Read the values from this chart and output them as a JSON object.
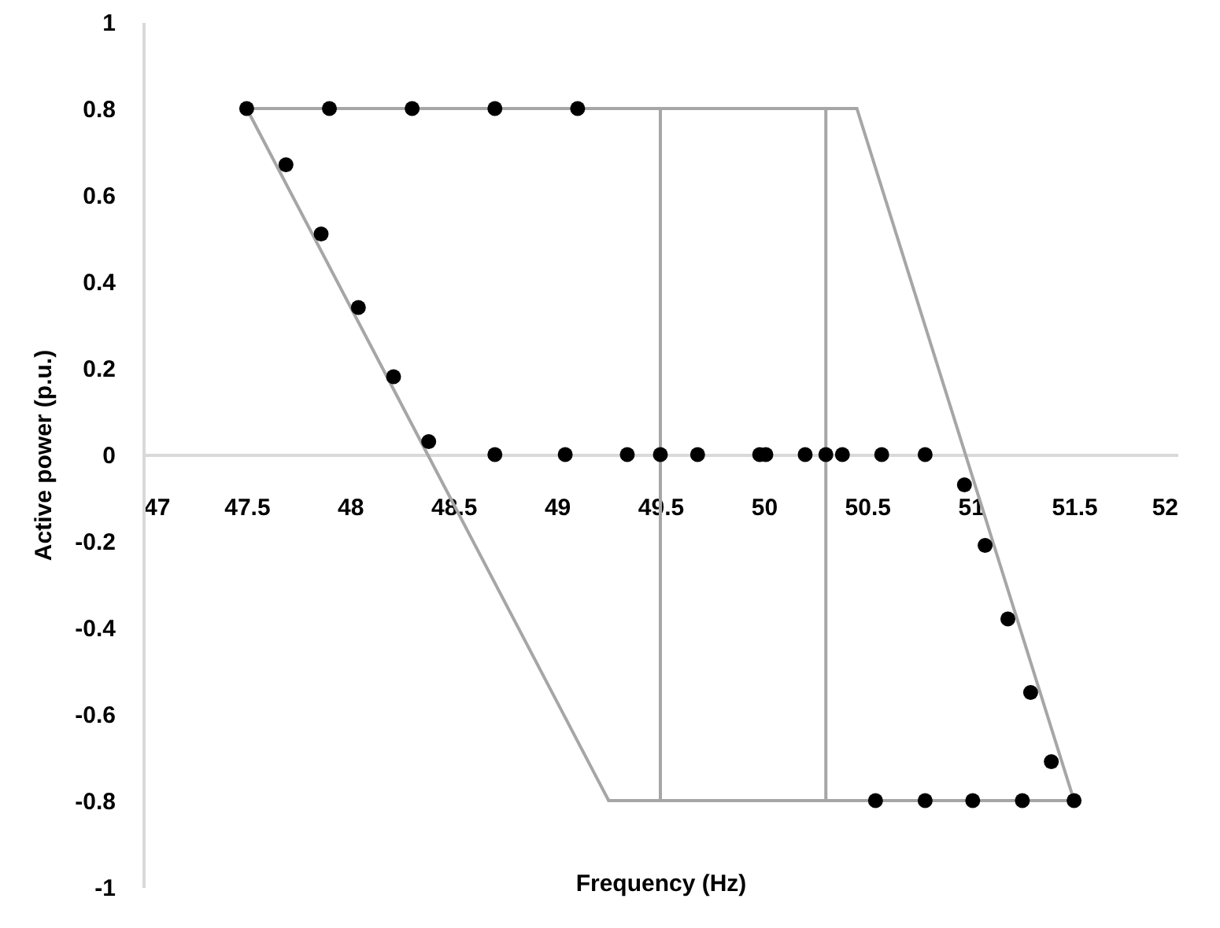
{
  "chart_data": {
    "type": "scatter",
    "xlabel": "Frequency (Hz)",
    "ylabel": "Active power (p.u.)",
    "xlim": [
      47,
      52
    ],
    "ylim": [
      -1,
      1
    ],
    "xticks": [
      47,
      47.5,
      48,
      48.5,
      49,
      49.5,
      50,
      50.5,
      51,
      51.5,
      52
    ],
    "yticks": [
      -1,
      -0.8,
      -0.6,
      -0.4,
      -0.2,
      0,
      0.2,
      0.4,
      0.6,
      0.8,
      1
    ],
    "marker": "circle",
    "series": [
      {
        "type": "line",
        "marker": "none",
        "color": "#a6a6a6",
        "x": [
          47.5,
          50.45
        ],
        "values": [
          0.8,
          0.8
        ]
      },
      {
        "type": "line",
        "marker": "none",
        "color": "#a6a6a6",
        "x": [
          50.45,
          51.5
        ],
        "values": [
          0.8,
          -0.8
        ]
      },
      {
        "type": "line",
        "marker": "none",
        "color": "#a6a6a6",
        "x": [
          49.25,
          51.5
        ],
        "values": [
          -0.8,
          -0.8
        ]
      },
      {
        "type": "line",
        "marker": "none",
        "color": "#a6a6a6",
        "x": [
          47.5,
          49.25
        ],
        "values": [
          0.8,
          -0.8
        ]
      },
      {
        "type": "line",
        "marker": "none",
        "color": "#a6a6a6",
        "x": [
          49.5,
          49.5
        ],
        "values": [
          0.8,
          -0.8
        ]
      },
      {
        "type": "line",
        "marker": "none",
        "color": "#a6a6a6",
        "x": [
          50.3,
          50.3
        ],
        "values": [
          0.8,
          -0.8
        ]
      },
      {
        "color": "#000000",
        "x": [
          47.5,
          47.9,
          48.3,
          48.7,
          49.1,
          47.69,
          47.86,
          48.04,
          48.21,
          48.38,
          48.7,
          49.04,
          49.34,
          49.5,
          49.68,
          49.98,
          50.01,
          50.2,
          50.3,
          50.38,
          50.57,
          50.78,
          50.97,
          51.07,
          51.18,
          51.29,
          51.39,
          51.5,
          50.54,
          50.78,
          51.01,
          51.25
        ],
        "values": [
          0.8,
          0.8,
          0.8,
          0.8,
          0.8,
          0.67,
          0.51,
          0.34,
          0.18,
          0.03,
          0,
          0,
          0,
          0,
          0,
          0,
          0,
          0,
          0,
          0,
          0,
          0,
          -0.07,
          -0.21,
          -0.38,
          -0.55,
          -0.71,
          -0.8,
          -0.8,
          -0.8,
          -0.8,
          -0.8
        ]
      }
    ]
  }
}
